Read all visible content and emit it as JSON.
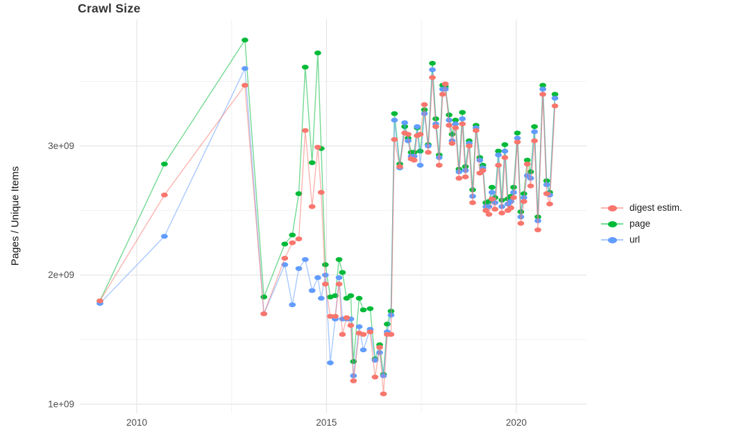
{
  "title": "Crawl Size",
  "y_axis": {
    "label": "Pages / Unique Items",
    "ticks": [
      {
        "v": 1.0,
        "label": "1e+09"
      },
      {
        "v": 2.0,
        "label": "2e+09"
      },
      {
        "v": 3.0,
        "label": "3e+09"
      }
    ],
    "minor": [
      1.5,
      2.5,
      3.5
    ]
  },
  "x_axis": {
    "ticks": [
      {
        "v": 2010,
        "label": "2010"
      },
      {
        "v": 2015,
        "label": "2015"
      },
      {
        "v": 2020,
        "label": "2020"
      }
    ],
    "minor": [
      2012.5,
      2017.5
    ]
  },
  "legend": {
    "items": [
      {
        "key": "digest",
        "label": "digest estim."
      },
      {
        "key": "page",
        "label": "page"
      },
      {
        "key": "url",
        "label": "url"
      }
    ]
  },
  "colors": {
    "digest": "#f8766d",
    "page": "#00ba38",
    "url": "#619cff",
    "grid_major": "#e4e4e4",
    "grid_minor": "#f1f1f1",
    "axis_text": "#4d4d4d"
  },
  "chart_data": {
    "type": "line",
    "title": "Crawl Size",
    "xlabel": "",
    "ylabel": "Pages / Unique Items",
    "y_unit": "items (value × 1e9)",
    "xlim": [
      2008.5,
      2021.85
    ],
    "ylim_e9": [
      0.93,
      3.98
    ],
    "grid": true,
    "legend_position": "right",
    "points_style": "ellipse-dot-on-line",
    "x": [
      2009.03,
      2010.73,
      2012.85,
      2013.35,
      2013.9,
      2014.1,
      2014.27,
      2014.44,
      2014.62,
      2014.77,
      2014.86,
      2014.97,
      2015.1,
      2015.23,
      2015.33,
      2015.42,
      2015.53,
      2015.64,
      2015.71,
      2015.86,
      2015.97,
      2016.15,
      2016.28,
      2016.4,
      2016.5,
      2016.6,
      2016.7,
      2016.79,
      2016.93,
      2017.06,
      2017.15,
      2017.23,
      2017.31,
      2017.39,
      2017.47,
      2017.58,
      2017.68,
      2017.79,
      2017.88,
      2017.97,
      2018.06,
      2018.13,
      2018.23,
      2018.31,
      2018.4,
      2018.49,
      2018.58,
      2018.66,
      2018.76,
      2018.85,
      2018.94,
      2019.04,
      2019.12,
      2019.2,
      2019.28,
      2019.36,
      2019.44,
      2019.53,
      2019.62,
      2019.7,
      2019.78,
      2019.86,
      2019.93,
      2020.03,
      2020.12,
      2020.2,
      2020.29,
      2020.38,
      2020.48,
      2020.57,
      2020.7,
      2020.8,
      2020.88,
      2021.02
    ],
    "series": [
      {
        "name": "page",
        "key": "page",
        "values": [
          1.8,
          2.86,
          3.82,
          1.83,
          2.24,
          2.31,
          2.63,
          3.61,
          2.87,
          3.72,
          2.98,
          2.08,
          1.83,
          1.84,
          2.12,
          2.02,
          1.82,
          1.84,
          1.33,
          1.82,
          1.73,
          1.74,
          1.35,
          1.46,
          1.23,
          1.62,
          1.72,
          3.25,
          2.86,
          3.15,
          3.06,
          2.95,
          2.95,
          3.14,
          2.96,
          3.28,
          3.01,
          3.64,
          3.21,
          2.93,
          3.47,
          3.46,
          3.24,
          3.09,
          3.2,
          2.82,
          3.26,
          2.84,
          3.04,
          2.66,
          3.16,
          2.91,
          2.85,
          2.56,
          2.57,
          2.68,
          2.6,
          2.96,
          2.58,
          3.01,
          2.59,
          2.61,
          2.68,
          3.1,
          2.49,
          2.63,
          2.89,
          2.8,
          3.15,
          2.45,
          3.47,
          2.73,
          2.64,
          3.4
        ]
      },
      {
        "name": "url",
        "key": "url",
        "values": [
          1.78,
          2.3,
          3.6,
          1.7,
          2.08,
          1.77,
          2.05,
          2.12,
          1.88,
          1.98,
          1.82,
          2.0,
          1.32,
          1.66,
          1.98,
          1.66,
          1.66,
          1.66,
          1.22,
          1.6,
          1.42,
          1.58,
          1.34,
          1.4,
          1.22,
          1.56,
          1.69,
          3.2,
          2.83,
          3.18,
          3.04,
          2.92,
          2.92,
          3.15,
          2.85,
          3.25,
          3.0,
          3.59,
          3.17,
          2.91,
          3.44,
          3.44,
          3.2,
          3.04,
          3.17,
          2.8,
          3.21,
          2.81,
          3.02,
          2.61,
          3.14,
          2.89,
          2.83,
          2.53,
          2.53,
          2.64,
          2.56,
          2.93,
          2.53,
          2.96,
          2.55,
          2.57,
          2.64,
          3.06,
          2.45,
          2.6,
          2.77,
          2.75,
          3.11,
          2.42,
          3.44,
          2.7,
          2.62,
          3.37
        ]
      },
      {
        "name": "digest estim.",
        "key": "digest",
        "values": [
          1.8,
          2.62,
          3.47,
          1.7,
          2.13,
          2.25,
          2.28,
          3.12,
          2.53,
          2.99,
          2.64,
          1.93,
          1.68,
          1.68,
          1.93,
          1.54,
          1.67,
          1.61,
          1.18,
          1.55,
          1.54,
          1.56,
          1.21,
          1.44,
          1.08,
          1.54,
          1.54,
          3.05,
          2.84,
          3.1,
          3.09,
          2.9,
          2.89,
          3.08,
          3.09,
          3.32,
          2.95,
          3.53,
          3.15,
          2.85,
          3.4,
          3.48,
          3.16,
          3.02,
          3.14,
          2.75,
          3.17,
          2.76,
          3.0,
          2.56,
          3.12,
          2.79,
          2.81,
          2.5,
          2.47,
          2.59,
          2.51,
          2.85,
          2.48,
          2.91,
          2.5,
          2.52,
          2.6,
          3.03,
          2.4,
          2.57,
          2.86,
          2.69,
          3.04,
          2.35,
          3.4,
          2.63,
          2.55,
          3.31
        ]
      }
    ]
  }
}
